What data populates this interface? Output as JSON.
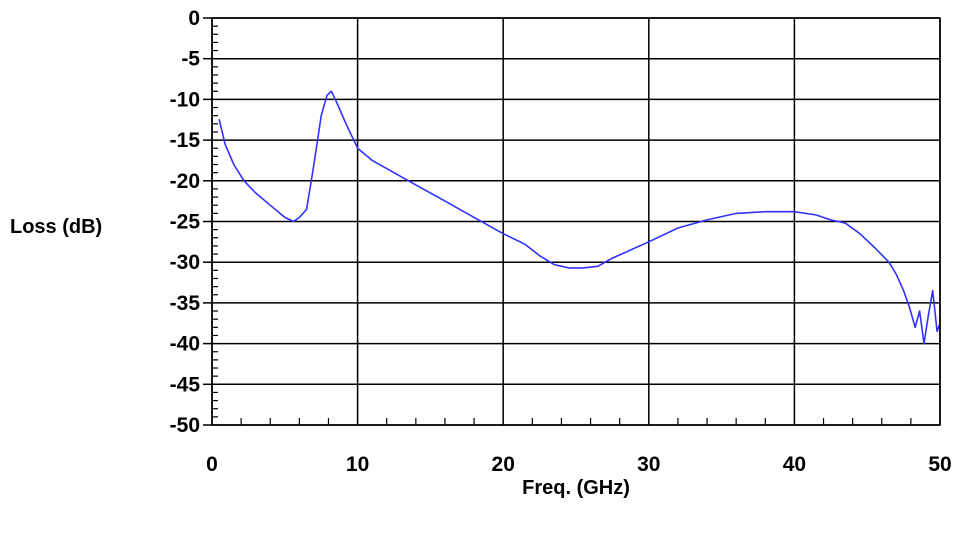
{
  "chart_data": {
    "type": "line",
    "xlabel": "Freq. (GHz)",
    "ylabel": "Loss (dB)",
    "xlim": [
      0,
      50
    ],
    "ylim": [
      -50,
      0
    ],
    "x_ticks": [
      0,
      10,
      20,
      30,
      40,
      50
    ],
    "y_ticks": [
      0,
      -5,
      -10,
      -15,
      -20,
      -25,
      -30,
      -35,
      -40,
      -45,
      -50
    ],
    "x_tick_labels": [
      "0",
      "10",
      "20",
      "30",
      "40",
      "50"
    ],
    "y_tick_labels": [
      "0",
      "-5",
      "-10",
      "-15",
      "-20",
      "-25",
      "-30",
      "-35",
      "-40",
      "-45",
      "-50"
    ],
    "grid": true,
    "series": [
      {
        "color": "#3232ff",
        "x": [
          0.5,
          0.9,
          1.5,
          2.2,
          3.0,
          4.0,
          5.0,
          5.6,
          6.0,
          6.5,
          7.0,
          7.5,
          7.9,
          8.2,
          8.6,
          9.2,
          10.0,
          11.0,
          12.0,
          14.0,
          16.0,
          18.0,
          20.0,
          21.5,
          22.5,
          23.5,
          24.5,
          25.5,
          26.5,
          27.5,
          28.5,
          30.0,
          32.0,
          34.0,
          36.0,
          38.0,
          40.0,
          41.5,
          42.5,
          43.5,
          44.5,
          45.5,
          46.5,
          47.0,
          47.5,
          47.9,
          48.3,
          48.6,
          48.9,
          49.2,
          49.5,
          49.8,
          50.0
        ],
        "y": [
          -12.5,
          -15.5,
          -18,
          -20,
          -21.5,
          -23,
          -24.5,
          -25,
          -24.5,
          -23.5,
          -18,
          -12,
          -9.5,
          -9,
          -10.5,
          -13,
          -16,
          -17.5,
          -18.5,
          -20.5,
          -22.5,
          -24.5,
          -26.5,
          -27.8,
          -29.2,
          -30.3,
          -30.7,
          -30.7,
          -30.5,
          -29.5,
          -28.7,
          -27.5,
          -25.8,
          -24.8,
          -24,
          -23.8,
          -23.8,
          -24.2,
          -24.8,
          -25.2,
          -26.5,
          -28.2,
          -30,
          -31.5,
          -33.5,
          -35.5,
          -38,
          -36,
          -40,
          -36.5,
          -33.5,
          -38.5,
          -37.5
        ]
      }
    ]
  }
}
